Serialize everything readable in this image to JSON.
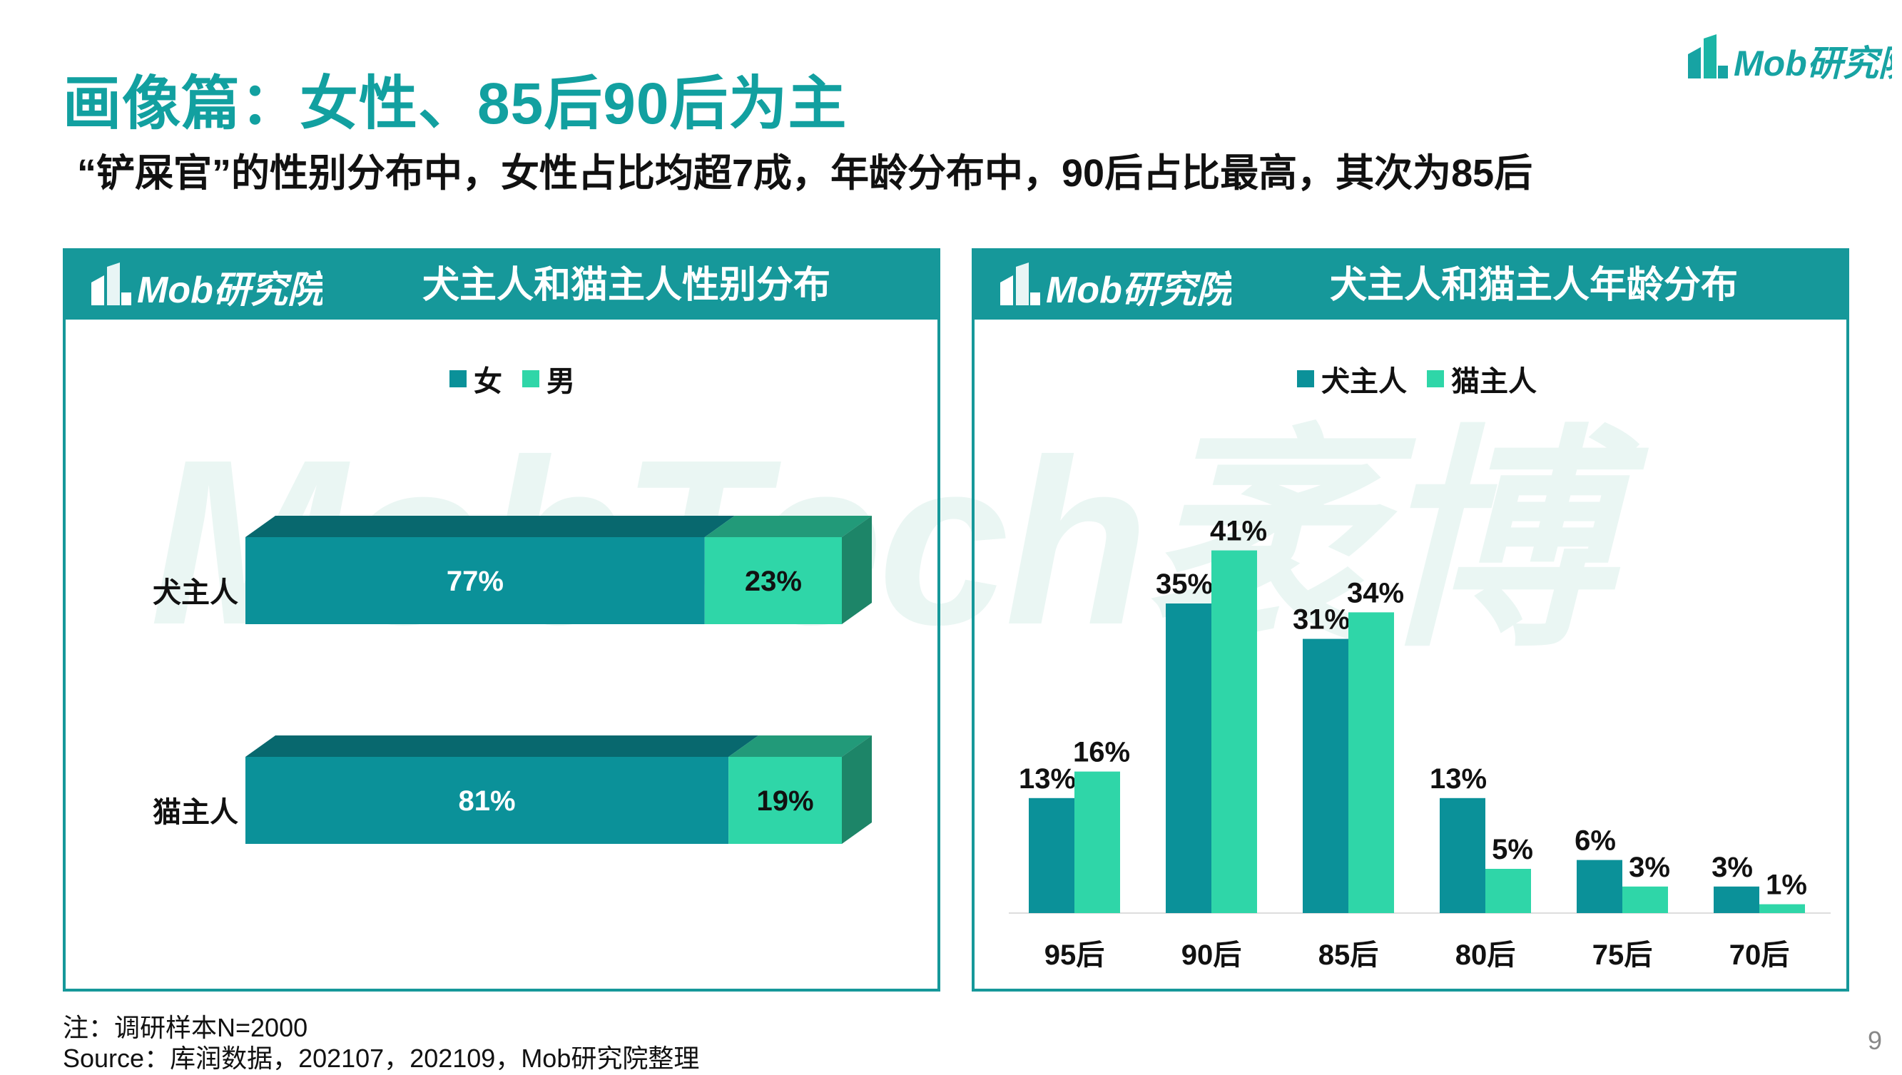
{
  "page": {
    "title": "画像篇：女性、85后90后为主",
    "subtitle": "“铲屎官”的性别分布中，女性占比均超7成，年龄分布中，90后占比最高，其次为85后",
    "logo_text": "Mob研究院",
    "watermark": "MobTech袤博",
    "note": "注：调研样本N=2000",
    "source": "Source：库润数据，202107，202109，Mob研究院整理",
    "page_number": "9"
  },
  "colors": {
    "accent": "#16989a",
    "dark_teal": "#0b9199",
    "light_green": "#2fd6a8"
  },
  "chart_data": [
    {
      "type": "bar",
      "orientation": "horizontal",
      "stacked": true,
      "title": "犬主人和猫主人性别分布",
      "categories": [
        "犬主人",
        "猫主人"
      ],
      "series": [
        {
          "name": "女",
          "values": [
            77,
            81
          ],
          "labels": [
            "77%",
            "81%"
          ],
          "color": "#0b9199"
        },
        {
          "name": "男",
          "values": [
            23,
            19
          ],
          "labels": [
            "23%",
            "19%"
          ],
          "color": "#2fd6a8"
        }
      ],
      "legend": "top-center",
      "xlim": [
        0,
        100
      ]
    },
    {
      "type": "bar",
      "title": "犬主人和猫主人年龄分布",
      "categories": [
        "95后",
        "90后",
        "85后",
        "80后",
        "75后",
        "70后"
      ],
      "series": [
        {
          "name": "犬主人",
          "values": [
            13,
            35,
            31,
            13,
            6,
            3
          ],
          "labels": [
            "13%",
            "35%",
            "31%",
            "13%",
            "6%",
            "3%"
          ],
          "color": "#0b9199"
        },
        {
          "name": "猫主人",
          "values": [
            16,
            41,
            34,
            5,
            3,
            1
          ],
          "labels": [
            "16%",
            "41%",
            "34%",
            "5%",
            "3%",
            "1%"
          ],
          "color": "#2fd6a8"
        }
      ],
      "legend": "top-center",
      "ylim": [
        0,
        45
      ]
    }
  ]
}
